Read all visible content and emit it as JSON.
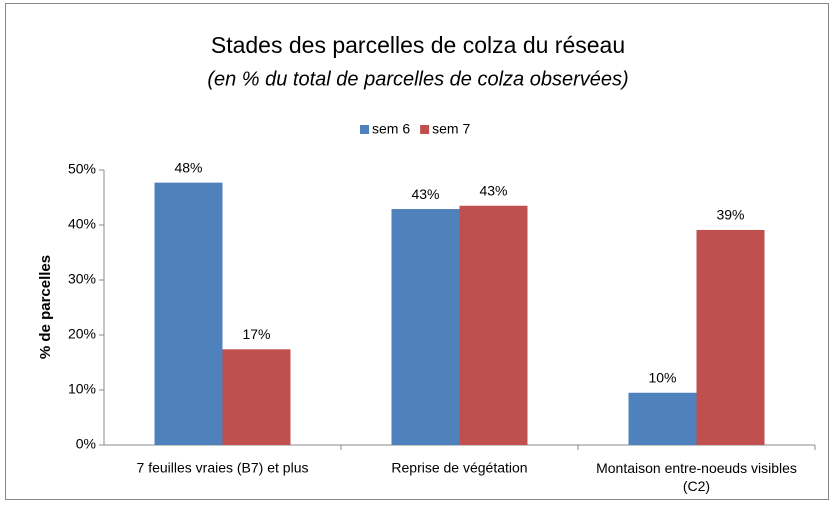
{
  "chart_data": {
    "type": "bar",
    "title": "Stades des parcelles de colza du réseau",
    "subtitle": "(en % du total de parcelles de colza observées)",
    "y_label": "% de parcelles",
    "categories": [
      "7 feuilles vraies (B7) et plus",
      "Reprise de végétation",
      "Montaison entre-noeuds visibles (C2)"
    ],
    "series": [
      {
        "name": "sem 6",
        "color": "#4f81bd",
        "values": [
          47.7,
          42.9,
          9.5
        ],
        "value_labels": [
          "48%",
          "43%",
          "10%"
        ]
      },
      {
        "name": "sem 7",
        "color": "#c0504d",
        "values": [
          17.4,
          43.5,
          39.1
        ],
        "value_labels": [
          "17%",
          "43%",
          "39%"
        ]
      }
    ],
    "ylim": [
      0,
      50
    ],
    "yticks": [
      {
        "value": 0,
        "label": "0%"
      },
      {
        "value": 10,
        "label": "10%"
      },
      {
        "value": 20,
        "label": "20%"
      },
      {
        "value": 30,
        "label": "30%"
      },
      {
        "value": 40,
        "label": "40%"
      },
      {
        "value": 50,
        "label": "50%"
      }
    ],
    "grid": false,
    "legend": "top"
  }
}
